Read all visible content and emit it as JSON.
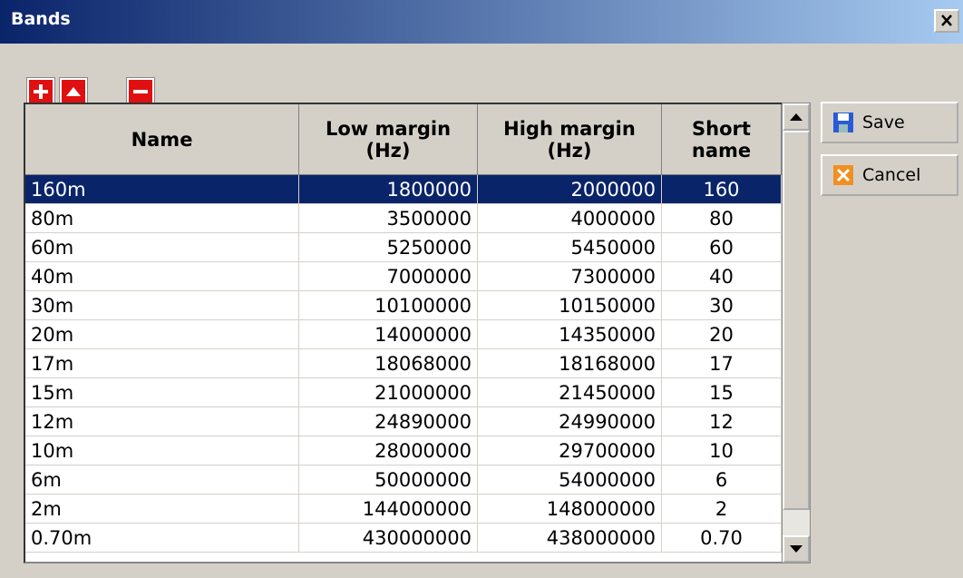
{
  "window": {
    "title": "Bands"
  },
  "buttons": {
    "save": "Save",
    "cancel": "Cancel"
  },
  "table": {
    "columns": [
      "Name",
      "Low margin\n(Hz)",
      "High margin\n(Hz)",
      "Short\nname"
    ],
    "selected_row": 0,
    "rows": [
      [
        "160m",
        "1800000",
        "2000000",
        "160"
      ],
      [
        "80m",
        "3500000",
        "4000000",
        "80"
      ],
      [
        "60m",
        "5250000",
        "5450000",
        "60"
      ],
      [
        "40m",
        "7000000",
        "7300000",
        "40"
      ],
      [
        "30m",
        "10100000",
        "10150000",
        "30"
      ],
      [
        "20m",
        "14000000",
        "14350000",
        "20"
      ],
      [
        "17m",
        "18068000",
        "18168000",
        "17"
      ],
      [
        "15m",
        "21000000",
        "21450000",
        "15"
      ],
      [
        "12m",
        "24890000",
        "24990000",
        "12"
      ],
      [
        "10m",
        "28000000",
        "29700000",
        "10"
      ],
      [
        "6m",
        "50000000",
        "54000000",
        "6"
      ],
      [
        "2m",
        "144000000",
        "148000000",
        "2"
      ],
      [
        "0.70m",
        "430000000",
        "438000000",
        "0.70"
      ]
    ]
  }
}
